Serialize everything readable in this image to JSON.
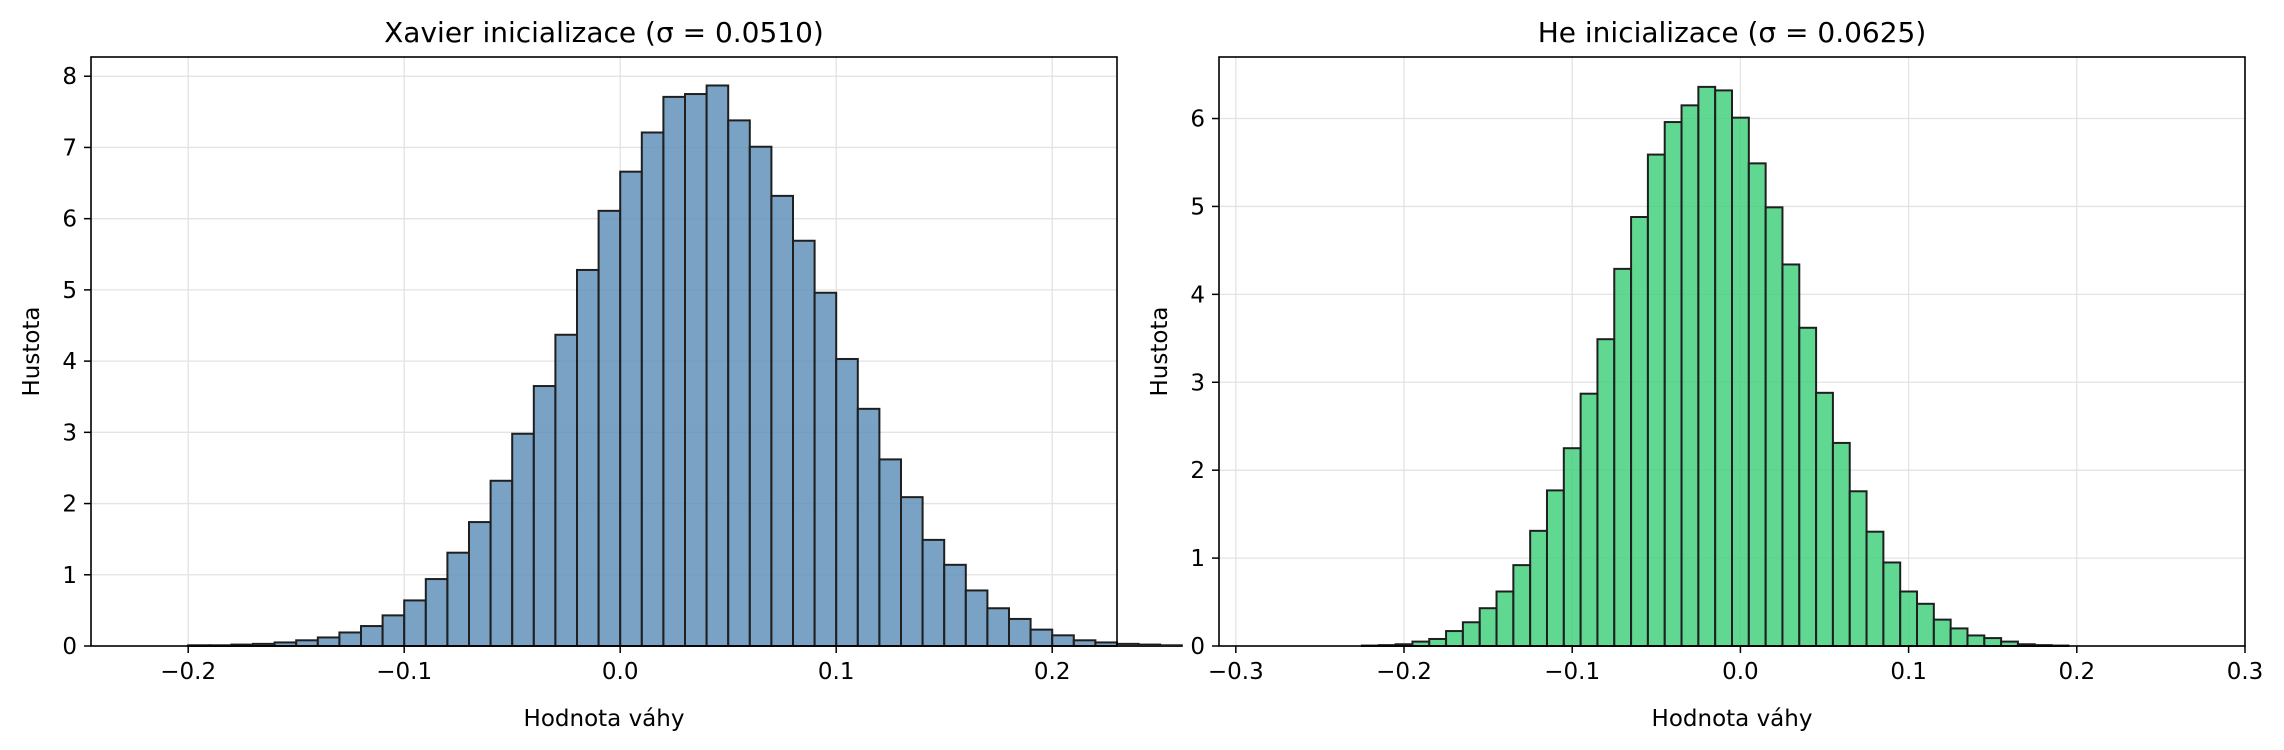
{
  "chart_data": [
    {
      "type": "bar",
      "title": "Xavier inicializace (σ = 0.0510)",
      "xlabel": "Hodnota váhy",
      "ylabel": "Hustota",
      "xlim": [
        -0.245,
        0.23
      ],
      "ylim": [
        0,
        8.27
      ],
      "grid": true,
      "color": "#5b8db8",
      "edge_color": "#1f1f1f",
      "x_ticks": [
        -0.2,
        -0.1,
        0.0,
        0.1,
        0.2
      ],
      "x_tick_labels": [
        "−0.2",
        "−0.1",
        "0.0",
        "0.1",
        "0.2"
      ],
      "y_ticks": [
        0,
        1,
        2,
        3,
        4,
        5,
        6,
        7,
        8
      ],
      "y_tick_labels": [
        "0",
        "1",
        "2",
        "3",
        "4",
        "5",
        "6",
        "7",
        "8"
      ],
      "bin_start": -0.2,
      "bin_width": 0.01,
      "values": [
        0.01,
        0.01,
        0.02,
        0.03,
        0.05,
        0.08,
        0.12,
        0.19,
        0.28,
        0.43,
        0.64,
        0.94,
        1.31,
        1.74,
        2.32,
        2.98,
        3.65,
        4.37,
        5.28,
        6.11,
        6.66,
        7.21,
        7.71,
        7.75,
        7.87,
        7.38,
        7.01,
        6.32,
        5.69,
        4.96,
        4.03,
        3.33,
        2.62,
        2.09,
        1.49,
        1.14,
        0.78,
        0.53,
        0.38,
        0.23,
        0.15,
        0.08,
        0.05,
        0.03,
        0.02,
        0.01
      ]
    },
    {
      "type": "bar",
      "title": "He inicializace (σ = 0.0625)",
      "xlabel": "Hodnota váhy",
      "ylabel": "Hustota",
      "xlim": [
        -0.31,
        0.3
      ],
      "ylim": [
        0,
        6.7
      ],
      "grid": true,
      "color": "#3ecf7a",
      "edge_color": "#1f1f1f",
      "x_ticks": [
        -0.3,
        -0.2,
        -0.1,
        0.0,
        0.1,
        0.2,
        0.3
      ],
      "x_tick_labels": [
        "−0.3",
        "−0.2",
        "−0.1",
        "0.0",
        "0.1",
        "0.2",
        "0.3"
      ],
      "y_ticks": [
        0,
        1,
        2,
        3,
        4,
        5,
        6
      ],
      "y_tick_labels": [
        "0",
        "1",
        "2",
        "3",
        "4",
        "5",
        "6"
      ],
      "bin_start": -0.225,
      "bin_width": 0.01,
      "values": [
        0.005,
        0.01,
        0.02,
        0.05,
        0.08,
        0.17,
        0.27,
        0.43,
        0.62,
        0.92,
        1.31,
        1.77,
        2.25,
        2.87,
        3.49,
        4.29,
        4.88,
        5.59,
        5.96,
        6.15,
        6.36,
        6.32,
        6.01,
        5.49,
        4.99,
        4.34,
        3.62,
        2.88,
        2.31,
        1.76,
        1.3,
        0.95,
        0.62,
        0.48,
        0.3,
        0.2,
        0.12,
        0.09,
        0.05,
        0.02,
        0.01,
        0.005
      ]
    }
  ]
}
